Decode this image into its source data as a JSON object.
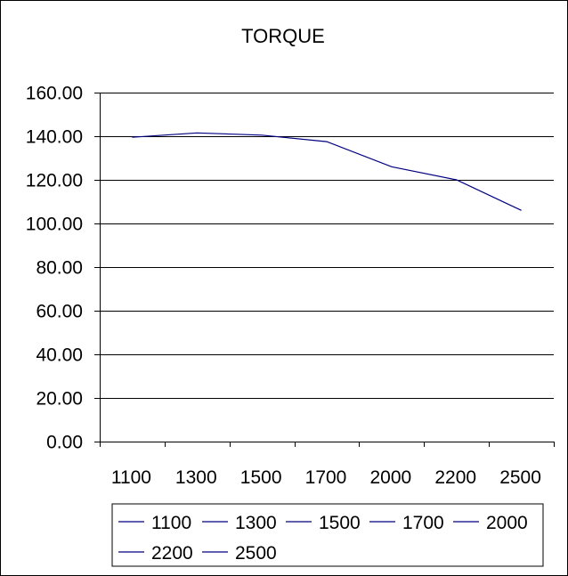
{
  "chart_data": {
    "type": "line",
    "title": "TORQUE",
    "categories": [
      "1100",
      "1300",
      "1500",
      "1700",
      "2000",
      "2200",
      "2500"
    ],
    "series": [
      {
        "values": [
          139.5,
          141.5,
          140.5,
          137.5,
          126.0,
          120.0,
          106.0
        ]
      }
    ],
    "y_ticks": [
      "0.00",
      "20.00",
      "40.00",
      "60.00",
      "80.00",
      "100.00",
      "120.00",
      "140.00",
      "160.00"
    ],
    "ylim": [
      0,
      160
    ],
    "grid": true,
    "legend": {
      "placement": "bottom",
      "entries": [
        "1100",
        "1300",
        "1500",
        "1700",
        "2000",
        "2200",
        "2500"
      ]
    },
    "colors": {
      "line": "#000080",
      "grid": "#000000",
      "background": "#ffffff"
    }
  }
}
